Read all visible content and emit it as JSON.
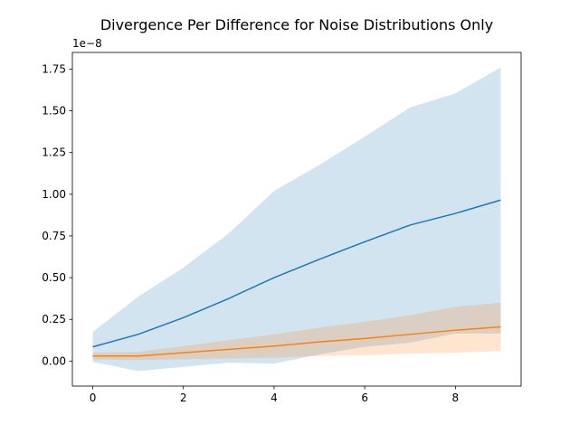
{
  "chart_data": {
    "type": "area",
    "title": "Divergence Per Difference for Noise Distributions Only",
    "xlabel": "",
    "ylabel": "",
    "y_offset_label": "1e−8",
    "x": [
      0,
      1,
      2,
      3,
      4,
      5,
      6,
      7,
      8,
      9
    ],
    "xlim": [
      -0.45,
      9.45
    ],
    "ylim": [
      -0.15,
      1.85
    ],
    "xticks": [
      0,
      2,
      4,
      6,
      8
    ],
    "yticks": [
      0.0,
      0.25,
      0.5,
      0.75,
      1.0,
      1.25,
      1.5,
      1.75
    ],
    "ytick_labels": [
      "0.00",
      "0.25",
      "0.50",
      "0.75",
      "1.00",
      "1.25",
      "1.50",
      "1.75"
    ],
    "grid": false,
    "legend": "none",
    "series": [
      {
        "color": "#1f77b4",
        "band_color": "#1f77b4",
        "mean": [
          0.085,
          0.16,
          0.26,
          0.375,
          0.5,
          0.61,
          0.715,
          0.815,
          0.885,
          0.965
        ],
        "lower": [
          -0.005,
          -0.06,
          -0.035,
          -0.01,
          -0.015,
          0.04,
          0.085,
          0.11,
          0.165,
          0.165
        ],
        "upper": [
          0.175,
          0.385,
          0.56,
          0.765,
          1.02,
          1.175,
          1.345,
          1.52,
          1.605,
          1.76
        ]
      },
      {
        "color": "#ff7f0e",
        "band_color": "#ff7f0e",
        "mean": [
          0.03,
          0.03,
          0.05,
          0.07,
          0.09,
          0.115,
          0.135,
          0.16,
          0.185,
          0.205
        ],
        "lower": [
          0.01,
          0.005,
          0.01,
          0.015,
          0.02,
          0.03,
          0.035,
          0.045,
          0.05,
          0.06
        ],
        "upper": [
          0.05,
          0.055,
          0.09,
          0.125,
          0.16,
          0.2,
          0.235,
          0.275,
          0.325,
          0.35
        ]
      }
    ]
  }
}
